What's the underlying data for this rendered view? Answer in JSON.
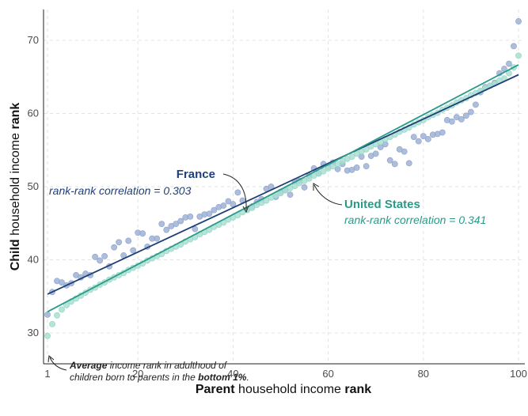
{
  "chart_data": {
    "type": "scatter",
    "xlabel_bold": "Parent",
    "xlabel_rest": " household income ",
    "xlabel_bold2": "rank",
    "ylabel_bold": "Child",
    "ylabel_rest": " household income ",
    "ylabel_bold2": "rank",
    "xlim": [
      1,
      100
    ],
    "ylim": [
      26,
      74
    ],
    "x_ticks": [
      1,
      20,
      40,
      60,
      80,
      100
    ],
    "y_ticks": [
      30,
      40,
      50,
      60,
      70
    ],
    "grid": true,
    "series": [
      {
        "name": "France",
        "color": "#9fb2d6",
        "line_color": "#1f3f78",
        "fit": {
          "intercept": 35.3,
          "slope": 0.303
        },
        "points": [
          [
            1,
            32.5
          ],
          [
            2,
            35.6
          ],
          [
            3,
            37.1
          ],
          [
            4,
            36.9
          ],
          [
            5,
            36.5
          ],
          [
            6,
            36.8
          ],
          [
            7,
            37.9
          ],
          [
            8,
            37.6
          ],
          [
            9,
            38.1
          ],
          [
            10,
            37.9
          ],
          [
            11,
            40.4
          ],
          [
            12,
            39.9
          ],
          [
            13,
            40.5
          ],
          [
            14,
            39.1
          ],
          [
            15,
            41.7
          ],
          [
            16,
            42.4
          ],
          [
            17,
            40.6
          ],
          [
            18,
            42.6
          ],
          [
            19,
            41.3
          ],
          [
            20,
            43.7
          ],
          [
            21,
            43.6
          ],
          [
            22,
            41.8
          ],
          [
            23,
            42.9
          ],
          [
            24,
            42.9
          ],
          [
            25,
            44.9
          ],
          [
            26,
            44.1
          ],
          [
            27,
            44.6
          ],
          [
            28,
            44.9
          ],
          [
            29,
            45.3
          ],
          [
            30,
            45.8
          ],
          [
            31,
            45.9
          ],
          [
            32,
            44.2
          ],
          [
            33,
            45.9
          ],
          [
            34,
            46.2
          ],
          [
            35,
            46.3
          ],
          [
            36,
            46.8
          ],
          [
            37,
            47.2
          ],
          [
            38,
            47.4
          ],
          [
            39,
            48.0
          ],
          [
            40,
            47.6
          ],
          [
            41,
            49.2
          ],
          [
            42,
            48.1
          ],
          [
            43,
            46.9
          ],
          [
            44,
            47.3
          ],
          [
            45,
            47.9
          ],
          [
            46,
            48.3
          ],
          [
            47,
            49.7
          ],
          [
            48,
            50.0
          ],
          [
            49,
            48.6
          ],
          [
            50,
            49.3
          ],
          [
            51,
            49.5
          ],
          [
            52,
            48.9
          ],
          [
            53,
            50.7
          ],
          [
            54,
            50.8
          ],
          [
            55,
            49.9
          ],
          [
            56,
            51.5
          ],
          [
            57,
            52.5
          ],
          [
            58,
            51.8
          ],
          [
            59,
            53.1
          ],
          [
            60,
            52.7
          ],
          [
            61,
            53.3
          ],
          [
            62,
            52.4
          ],
          [
            63,
            53.1
          ],
          [
            64,
            52.2
          ],
          [
            65,
            52.3
          ],
          [
            66,
            52.6
          ],
          [
            67,
            54.1
          ],
          [
            68,
            52.8
          ],
          [
            69,
            54.2
          ],
          [
            70,
            54.5
          ],
          [
            71,
            55.4
          ],
          [
            72,
            55.8
          ],
          [
            73,
            53.6
          ],
          [
            74,
            53.1
          ],
          [
            75,
            55.1
          ],
          [
            76,
            54.8
          ],
          [
            77,
            53.2
          ],
          [
            78,
            56.8
          ],
          [
            79,
            56.2
          ],
          [
            80,
            56.9
          ],
          [
            81,
            56.5
          ],
          [
            82,
            57.1
          ],
          [
            83,
            57.2
          ],
          [
            84,
            57.4
          ],
          [
            85,
            59.1
          ],
          [
            86,
            58.9
          ],
          [
            87,
            59.5
          ],
          [
            88,
            59.2
          ],
          [
            89,
            59.7
          ],
          [
            90,
            60.2
          ],
          [
            91,
            61.2
          ],
          [
            92,
            62.9
          ],
          [
            93,
            63.6
          ],
          [
            94,
            63.8
          ],
          [
            95,
            64.2
          ],
          [
            96,
            65.5
          ],
          [
            97,
            66.1
          ],
          [
            98,
            66.8
          ],
          [
            99,
            69.2
          ],
          [
            100,
            72.6
          ]
        ]
      },
      {
        "name": "United States",
        "color": "#a8e0d2",
        "line_color": "#2a9a88",
        "fit": {
          "intercept": 32.9,
          "slope": 0.341
        },
        "points": [
          [
            1,
            29.6
          ],
          [
            2,
            31.2
          ],
          [
            3,
            32.4
          ],
          [
            4,
            33.2
          ],
          [
            5,
            33.8
          ],
          [
            6,
            34.3
          ],
          [
            7,
            34.7
          ],
          [
            8,
            35.1
          ],
          [
            9,
            35.5
          ],
          [
            10,
            35.9
          ],
          [
            11,
            36.2
          ],
          [
            12,
            36.6
          ],
          [
            13,
            36.9
          ],
          [
            14,
            37.3
          ],
          [
            15,
            37.6
          ],
          [
            16,
            37.9
          ],
          [
            17,
            38.2
          ],
          [
            18,
            38.6
          ],
          [
            19,
            38.9
          ],
          [
            20,
            39.2
          ],
          [
            21,
            39.5
          ],
          [
            22,
            39.9
          ],
          [
            23,
            40.2
          ],
          [
            24,
            40.5
          ],
          [
            25,
            40.8
          ],
          [
            26,
            41.2
          ],
          [
            27,
            41.5
          ],
          [
            28,
            41.8
          ],
          [
            29,
            42.1
          ],
          [
            30,
            42.5
          ],
          [
            31,
            42.8
          ],
          [
            32,
            43.1
          ],
          [
            33,
            43.5
          ],
          [
            34,
            43.8
          ],
          [
            35,
            44.1
          ],
          [
            36,
            44.5
          ],
          [
            37,
            44.8
          ],
          [
            38,
            45.1
          ],
          [
            39,
            45.5
          ],
          [
            40,
            45.8
          ],
          [
            41,
            46.1
          ],
          [
            42,
            46.5
          ],
          [
            43,
            46.8
          ],
          [
            44,
            47.1
          ],
          [
            45,
            47.5
          ],
          [
            46,
            47.8
          ],
          [
            47,
            48.1
          ],
          [
            48,
            48.5
          ],
          [
            49,
            48.8
          ],
          [
            50,
            49.1
          ],
          [
            51,
            49.5
          ],
          [
            52,
            49.8
          ],
          [
            53,
            50.1
          ],
          [
            54,
            50.5
          ],
          [
            55,
            50.8
          ],
          [
            56,
            51.1
          ],
          [
            57,
            51.5
          ],
          [
            58,
            51.8
          ],
          [
            59,
            52.1
          ],
          [
            60,
            52.5
          ],
          [
            61,
            52.8
          ],
          [
            62,
            53.1
          ],
          [
            63,
            53.5
          ],
          [
            64,
            53.8
          ],
          [
            65,
            54.1
          ],
          [
            66,
            54.5
          ],
          [
            67,
            54.8
          ],
          [
            68,
            55.1
          ],
          [
            69,
            55.5
          ],
          [
            70,
            55.8
          ],
          [
            71,
            56.1
          ],
          [
            72,
            56.5
          ],
          [
            73,
            56.8
          ],
          [
            74,
            57.1
          ],
          [
            75,
            57.5
          ],
          [
            76,
            57.8
          ],
          [
            77,
            58.1
          ],
          [
            78,
            58.5
          ],
          [
            79,
            58.8
          ],
          [
            80,
            59.1
          ],
          [
            81,
            59.5
          ],
          [
            82,
            59.8
          ],
          [
            83,
            60.1
          ],
          [
            84,
            60.5
          ],
          [
            85,
            60.8
          ],
          [
            86,
            61.1
          ],
          [
            87,
            61.5
          ],
          [
            88,
            61.8
          ],
          [
            89,
            62.1
          ],
          [
            90,
            62.5
          ],
          [
            91,
            62.8
          ],
          [
            92,
            63.1
          ],
          [
            93,
            63.5
          ],
          [
            94,
            63.8
          ],
          [
            95,
            64.1
          ],
          [
            96,
            64.5
          ],
          [
            97,
            64.8
          ],
          [
            98,
            65.5
          ],
          [
            99,
            66.3
          ],
          [
            100,
            67.9
          ]
        ]
      }
    ],
    "annotations": {
      "france_name": "France",
      "france_corr": "rank-rank correlation = 0.303",
      "us_name": "United States",
      "us_corr": "rank-rank correlation = 0.341",
      "bottom_note_bold1": "Average",
      "bottom_note_text1": " income rank in adulthood of",
      "bottom_note_text2": "children born to parents in the ",
      "bottom_note_bold2": "bottom 1%",
      "bottom_note_text3": "."
    }
  }
}
